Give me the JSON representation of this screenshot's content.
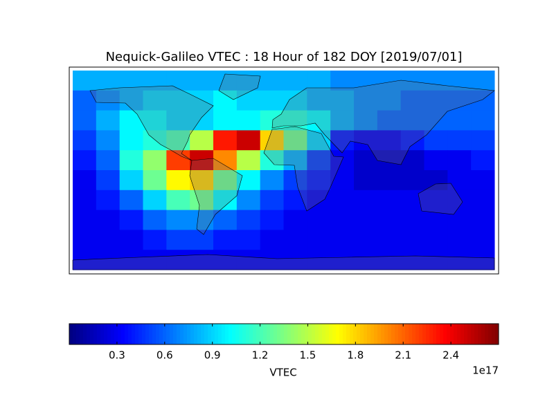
{
  "title": "Nequick-Galileo VTEC : 18 Hour of 182 DOY [2019/07/01]",
  "map": {
    "type": "heatmap",
    "values": [
      [
        0.8,
        0.8,
        0.8,
        0.8,
        0.8,
        0.8,
        0.8,
        0.8,
        0.8,
        0.8,
        0.8,
        0.7,
        0.7,
        0.7,
        0.7,
        0.7,
        0.7,
        0.7
      ],
      [
        0.6,
        0.7,
        0.8,
        0.9,
        0.9,
        0.9,
        1.0,
        0.9,
        0.9,
        0.9,
        0.8,
        0.8,
        0.7,
        0.7,
        0.6,
        0.6,
        0.6,
        0.6
      ],
      [
        0.6,
        0.8,
        1.0,
        1.0,
        0.9,
        0.9,
        1.0,
        1.0,
        1.1,
        1.1,
        1.0,
        0.8,
        0.7,
        0.6,
        0.6,
        0.6,
        0.6,
        0.6
      ],
      [
        0.5,
        0.7,
        1.0,
        1.1,
        1.2,
        1.5,
        2.3,
        2.5,
        1.8,
        1.3,
        0.9,
        0.4,
        0.3,
        0.3,
        0.4,
        0.5,
        0.5,
        0.5
      ],
      [
        0.4,
        0.6,
        1.1,
        1.4,
        2.2,
        2.5,
        2.0,
        1.5,
        1.1,
        0.8,
        0.5,
        0.3,
        0.2,
        0.2,
        0.2,
        0.3,
        0.3,
        0.4
      ],
      [
        0.3,
        0.5,
        0.9,
        1.3,
        1.7,
        1.8,
        1.3,
        1.0,
        0.7,
        0.5,
        0.4,
        0.3,
        0.2,
        0.2,
        0.2,
        0.2,
        0.3,
        0.3
      ],
      [
        0.3,
        0.4,
        0.6,
        0.9,
        1.2,
        1.3,
        1.0,
        0.7,
        0.5,
        0.4,
        0.3,
        0.3,
        0.3,
        0.3,
        0.3,
        0.3,
        0.3,
        0.3
      ],
      [
        0.3,
        0.3,
        0.4,
        0.6,
        0.7,
        0.7,
        0.6,
        0.5,
        0.4,
        0.3,
        0.3,
        0.3,
        0.3,
        0.3,
        0.3,
        0.3,
        0.3,
        0.3
      ],
      [
        0.3,
        0.3,
        0.3,
        0.4,
        0.5,
        0.5,
        0.4,
        0.4,
        0.3,
        0.3,
        0.3,
        0.3,
        0.3,
        0.3,
        0.3,
        0.3,
        0.3,
        0.3
      ],
      [
        0.3,
        0.3,
        0.3,
        0.3,
        0.3,
        0.3,
        0.3,
        0.3,
        0.3,
        0.3,
        0.3,
        0.3,
        0.3,
        0.3,
        0.3,
        0.3,
        0.3,
        0.3
      ]
    ]
  },
  "colorbar": {
    "label": "VTEC",
    "offset_label": "1e17",
    "lim": [
      0,
      2.7
    ],
    "ticks": [
      0.3,
      0.6,
      0.9,
      1.2,
      1.5,
      1.8,
      2.1,
      2.4
    ]
  }
}
